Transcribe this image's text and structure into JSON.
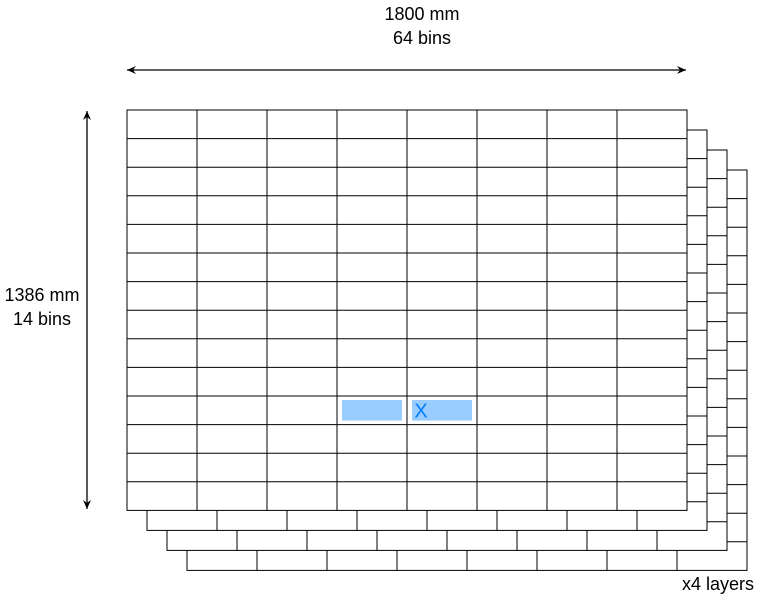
{
  "width_label": "1800 mm",
  "width_bins_label": "64 bins",
  "height_label": "1386 mm",
  "height_bins_label": "14 bins",
  "layers_label": "x4 layers",
  "highlight_marker": "X",
  "grid": {
    "columns_visible": 8,
    "rows": 14,
    "layers": 4
  },
  "highlighted_cells": [
    {
      "row": 11,
      "column": 4
    },
    {
      "row": 11,
      "column": 5
    }
  ],
  "marker_cell": {
    "row": 11,
    "column": 5
  },
  "colors": {
    "line": "#000000",
    "highlight": "#99ccff",
    "marker": "#007fff"
  }
}
